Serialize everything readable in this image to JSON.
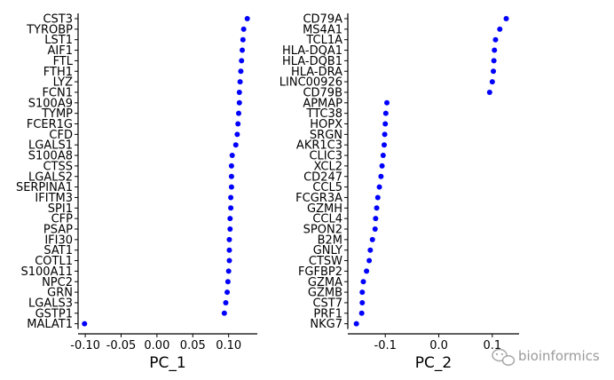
{
  "chart_data": [
    {
      "type": "scatter",
      "xlabel": "PC_1",
      "xlim": [
        -0.11,
        0.14
      ],
      "xticks": [
        -0.1,
        -0.05,
        0.0,
        0.05,
        0.1
      ],
      "xtick_labels": [
        "-0.10",
        "-0.05",
        "0.00",
        "0.05",
        "0.10"
      ],
      "color": "#0000ff",
      "genes": [
        "CST3",
        "TYROBP",
        "LST1",
        "AIF1",
        "FTL",
        "FTH1",
        "LYZ",
        "FCN1",
        "S100A9",
        "TYMP",
        "FCER1G",
        "CFD",
        "LGALS1",
        "S100A8",
        "CTSS",
        "LGALS2",
        "SERPINA1",
        "IFITM3",
        "SPI1",
        "CFP",
        "PSAP",
        "IFI30",
        "SAT1",
        "COTL1",
        "S100A11",
        "NPC2",
        "GRN",
        "LGALS3",
        "GSTP1",
        "MALAT1"
      ],
      "values": [
        0.126,
        0.121,
        0.12,
        0.119,
        0.118,
        0.117,
        0.116,
        0.115,
        0.115,
        0.114,
        0.113,
        0.112,
        0.11,
        0.105,
        0.104,
        0.104,
        0.104,
        0.103,
        0.103,
        0.102,
        0.102,
        0.101,
        0.101,
        0.101,
        0.1,
        0.099,
        0.098,
        0.096,
        0.094,
        -0.101
      ]
    },
    {
      "type": "scatter",
      "xlabel": "PC_2",
      "xlim": [
        -0.17,
        0.15
      ],
      "xticks": [
        -0.1,
        0.0,
        0.1
      ],
      "xtick_labels": [
        "-0.1",
        "0.0",
        "0.1"
      ],
      "color": "#0000ff",
      "genes": [
        "CD79A",
        "MS4A1",
        "TCL1A",
        "HLA-DQA1",
        "HLA-DQB1",
        "HLA-DRA",
        "LINC00926",
        "CD79B",
        "APMAP",
        "TTC38",
        "HOPX",
        "SRGN",
        "AKR1C3",
        "CLIC3",
        "XCL2",
        "CD247",
        "CCL5",
        "FCGR3A",
        "GZMH",
        "CCL4",
        "SPON2",
        "B2M",
        "GNLY",
        "CTSW",
        "FGFBP2",
        "GZMA",
        "GZMB",
        "CST7",
        "PRF1",
        "NKG7"
      ],
      "values": [
        0.126,
        0.114,
        0.106,
        0.104,
        0.103,
        0.102,
        0.1,
        0.095,
        -0.097,
        -0.099,
        -0.1,
        -0.101,
        -0.102,
        -0.104,
        -0.106,
        -0.108,
        -0.111,
        -0.114,
        -0.116,
        -0.118,
        -0.119,
        -0.124,
        -0.128,
        -0.13,
        -0.135,
        -0.141,
        -0.143,
        -0.143,
        -0.144,
        -0.154
      ]
    }
  ],
  "watermark": {
    "icon": "wechat-icon",
    "text": "bioinformics"
  }
}
